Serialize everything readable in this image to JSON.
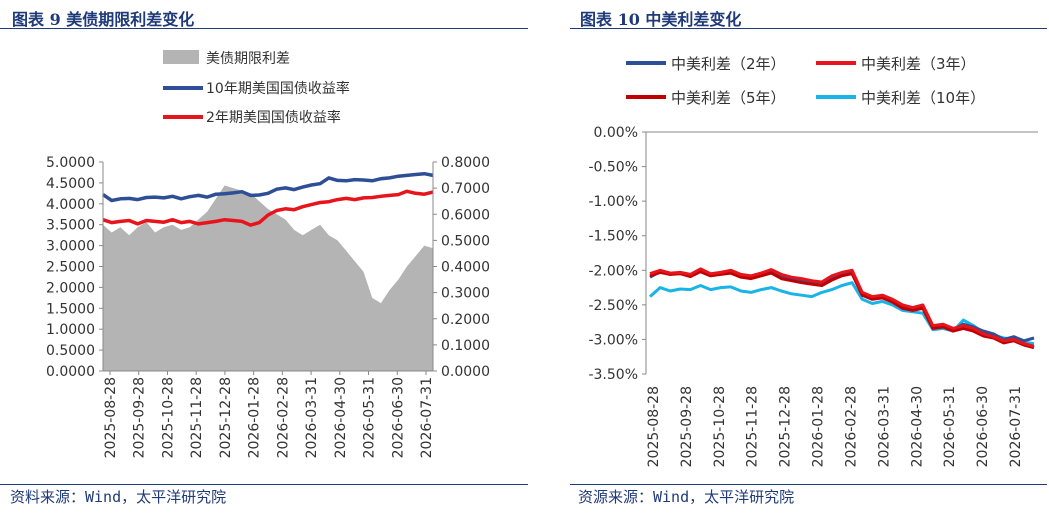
{
  "figures": [
    {
      "title": "图表 9 美债期限利差变化",
      "source": "资料来源：Wind，太平洋研究院"
    },
    {
      "title": "图表 10 中美利差变化",
      "source": "资源来源：Wind，太平洋研究院"
    }
  ],
  "colors": {
    "navy": "#2e4f96",
    "red": "#e8141c",
    "darkred": "#c00000",
    "cyan": "#18b4e8",
    "gray": "#b4b4b4",
    "title": "#1f3a78"
  },
  "chart_data": [
    {
      "type": "line",
      "title": "",
      "x_ticks": [
        "2025-08-28",
        "2025-09-28",
        "2025-10-28",
        "2025-11-28",
        "2025-12-28",
        "2026-01-28",
        "2026-02-28",
        "2026-03-31",
        "2026-04-30",
        "2026-05-31",
        "2026-06-30",
        "2026-07-31"
      ],
      "y_left": {
        "ticks": [
          "0.0000",
          "0.5000",
          "1.0000",
          "1.5000",
          "2.0000",
          "2.5000",
          "3.0000",
          "3.5000",
          "4.0000",
          "4.5000",
          "5.0000"
        ],
        "range": [
          0,
          5
        ]
      },
      "y_right": {
        "ticks": [
          "0.0000",
          "0.1000",
          "0.2000",
          "0.3000",
          "0.4000",
          "0.5000",
          "0.6000",
          "0.7000",
          "0.8000"
        ],
        "range": [
          0,
          0.8
        ]
      },
      "legend": [
        "美债期限利差",
        "10年期美国国债收益率",
        "2年期美国国债收益率"
      ],
      "series": [
        {
          "name": "美债期限利差",
          "type": "area",
          "axis": "right",
          "color": "#b4b4b4",
          "values": [
            0.56,
            0.53,
            0.55,
            0.52,
            0.55,
            0.57,
            0.53,
            0.55,
            0.56,
            0.54,
            0.55,
            0.58,
            0.61,
            0.66,
            0.71,
            0.7,
            0.69,
            0.68,
            0.65,
            0.62,
            0.6,
            0.58,
            0.54,
            0.52,
            0.54,
            0.56,
            0.52,
            0.5,
            0.46,
            0.42,
            0.38,
            0.28,
            0.26,
            0.31,
            0.35,
            0.4,
            0.44,
            0.48,
            0.47
          ]
        },
        {
          "name": "10年期美国国债收益率",
          "type": "line",
          "axis": "left",
          "color": "#2e4f96",
          "values": [
            4.22,
            4.08,
            4.12,
            4.13,
            4.1,
            4.15,
            4.16,
            4.14,
            4.18,
            4.12,
            4.17,
            4.2,
            4.16,
            4.23,
            4.24,
            4.26,
            4.29,
            4.2,
            4.21,
            4.25,
            4.35,
            4.38,
            4.34,
            4.4,
            4.45,
            4.48,
            4.62,
            4.56,
            4.55,
            4.58,
            4.57,
            4.55,
            4.6,
            4.62,
            4.66,
            4.68,
            4.7,
            4.72,
            4.68
          ]
        },
        {
          "name": "2年期美国国债收益率",
          "type": "line",
          "axis": "left",
          "color": "#e8141c",
          "values": [
            3.62,
            3.55,
            3.58,
            3.6,
            3.52,
            3.6,
            3.58,
            3.56,
            3.62,
            3.55,
            3.58,
            3.52,
            3.55,
            3.58,
            3.62,
            3.6,
            3.58,
            3.49,
            3.55,
            3.73,
            3.84,
            3.88,
            3.86,
            3.93,
            3.98,
            4.03,
            4.05,
            4.1,
            4.13,
            4.1,
            4.14,
            4.15,
            4.18,
            4.2,
            4.22,
            4.3,
            4.25,
            4.23,
            4.28
          ]
        }
      ]
    },
    {
      "type": "line",
      "title": "",
      "x_ticks": [
        "2025-08-28",
        "2025-09-28",
        "2025-10-28",
        "2025-11-28",
        "2025-12-28",
        "2026-01-28",
        "2026-02-28",
        "2026-03-31",
        "2026-04-30",
        "2026-05-31",
        "2026-06-30",
        "2026-07-31"
      ],
      "y_axis": {
        "ticks": [
          "0.00%",
          "-0.50%",
          "-1.00%",
          "-1.50%",
          "-2.00%",
          "-2.50%",
          "-3.00%",
          "-3.50%"
        ],
        "range": [
          -3.5,
          0
        ]
      },
      "legend": [
        "中美利差（2年）",
        "中美利差（3年）",
        "中美利差（5年）",
        "中美利差（10年）"
      ],
      "series": [
        {
          "name": "中美利差（2年）",
          "color": "#2e4f96",
          "values": [
            -2.1,
            -2.02,
            -2.06,
            -2.04,
            -2.08,
            -2.0,
            -2.06,
            -2.04,
            -2.01,
            -2.08,
            -2.1,
            -2.05,
            -2.0,
            -2.08,
            -2.12,
            -2.14,
            -2.16,
            -2.18,
            -2.1,
            -2.05,
            -2.02,
            -2.34,
            -2.4,
            -2.38,
            -2.44,
            -2.52,
            -2.55,
            -2.52,
            -2.82,
            -2.8,
            -2.86,
            -2.78,
            -2.82,
            -2.88,
            -2.92,
            -3.0,
            -2.96,
            -3.02,
            -2.98
          ]
        },
        {
          "name": "中美利差（3年）",
          "color": "#e8141c",
          "values": [
            -2.05,
            -2.0,
            -2.04,
            -2.03,
            -2.06,
            -1.98,
            -2.05,
            -2.03,
            -2.0,
            -2.06,
            -2.08,
            -2.04,
            -1.99,
            -2.06,
            -2.1,
            -2.12,
            -2.15,
            -2.17,
            -2.08,
            -2.03,
            -2.0,
            -2.32,
            -2.38,
            -2.36,
            -2.42,
            -2.5,
            -2.54,
            -2.5,
            -2.8,
            -2.78,
            -2.84,
            -2.8,
            -2.84,
            -2.92,
            -2.96,
            -3.02,
            -3.0,
            -3.06,
            -3.1
          ]
        },
        {
          "name": "中美利差（5年）",
          "color": "#c00000",
          "values": [
            -2.08,
            -2.03,
            -2.06,
            -2.05,
            -2.09,
            -2.02,
            -2.08,
            -2.06,
            -2.04,
            -2.1,
            -2.12,
            -2.08,
            -2.04,
            -2.12,
            -2.15,
            -2.18,
            -2.2,
            -2.22,
            -2.14,
            -2.08,
            -2.05,
            -2.36,
            -2.42,
            -2.4,
            -2.46,
            -2.55,
            -2.58,
            -2.55,
            -2.84,
            -2.82,
            -2.88,
            -2.84,
            -2.88,
            -2.95,
            -2.98,
            -3.05,
            -3.02,
            -3.08,
            -3.12
          ]
        },
        {
          "name": "中美利差（10年）",
          "color": "#18b4e8",
          "values": [
            -2.38,
            -2.25,
            -2.3,
            -2.27,
            -2.28,
            -2.22,
            -2.28,
            -2.25,
            -2.24,
            -2.3,
            -2.32,
            -2.28,
            -2.25,
            -2.3,
            -2.34,
            -2.36,
            -2.38,
            -2.32,
            -2.28,
            -2.22,
            -2.18,
            -2.42,
            -2.48,
            -2.45,
            -2.5,
            -2.58,
            -2.6,
            -2.62,
            -2.86,
            -2.84,
            -2.88,
            -2.72,
            -2.8,
            -2.9,
            -2.94,
            -2.98,
            -3.0,
            -3.04,
            -3.06
          ]
        }
      ]
    }
  ]
}
